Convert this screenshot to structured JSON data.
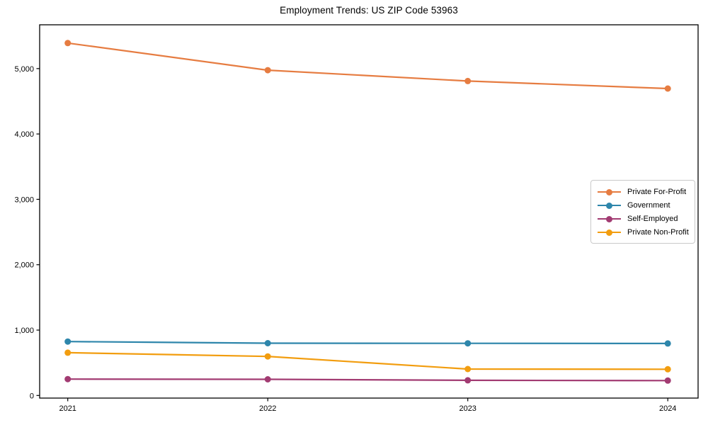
{
  "title": "Employment Trends: US ZIP Code 53963",
  "chart_data": {
    "type": "line",
    "title": "Employment Trends: US ZIP Code 53963",
    "categories": [
      "2021",
      "2022",
      "2023",
      "2024"
    ],
    "series": [
      {
        "name": "Private For-Profit",
        "color": "#E67C41",
        "values": [
          5390,
          4975,
          4810,
          4695
        ]
      },
      {
        "name": "Government",
        "color": "#2E86AB",
        "values": [
          825,
          800,
          797,
          795
        ]
      },
      {
        "name": "Self-Employed",
        "color": "#A23B72",
        "values": [
          250,
          247,
          232,
          228
        ]
      },
      {
        "name": "Private Non-Profit",
        "color": "#F29D0F",
        "values": [
          655,
          597,
          404,
          401
        ]
      }
    ],
    "xlabel": "",
    "ylabel": "",
    "ylim": [
      -40,
      5670
    ],
    "y_ticks": [
      {
        "value": 0,
        "label": "0"
      },
      {
        "value": 1000,
        "label": "1,000"
      },
      {
        "value": 2000,
        "label": "2,000"
      },
      {
        "value": 3000,
        "label": "3,000"
      },
      {
        "value": 4000,
        "label": "4,000"
      },
      {
        "value": 5000,
        "label": "5,000"
      }
    ],
    "grid": false,
    "legend_position": "center right",
    "marker": "circle",
    "line_width": 2.2,
    "marker_radius": 4.5,
    "axis_color": "#000000",
    "background_color": "#ffffff"
  }
}
